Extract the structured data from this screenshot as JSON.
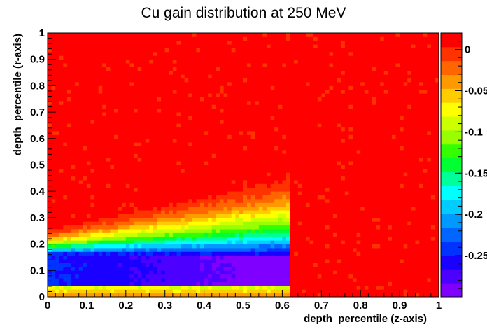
{
  "chart_data": {
    "type": "heatmap",
    "title": "Cu gain distribution at 250 MeV",
    "xlabel": "depth_percentile (z-axis)",
    "ylabel": "depth_percentile (r-axis)",
    "xlim": [
      0,
      1
    ],
    "ylim": [
      0,
      1
    ],
    "zlim": [
      -0.3,
      0.02
    ],
    "x_ticks": [
      "0",
      "0.1",
      "0.2",
      "0.3",
      "0.4",
      "0.5",
      "0.6",
      "0.7",
      "0.8",
      "0.9",
      "1"
    ],
    "y_ticks": [
      "0",
      "0.1",
      "0.2",
      "0.3",
      "0.4",
      "0.5",
      "0.6",
      "0.7",
      "0.8",
      "0.9",
      "1"
    ],
    "colorbar_ticks": [
      {
        "label": "0",
        "value": 0
      },
      {
        "label": "-0.05",
        "value": -0.05
      },
      {
        "label": "-0.1",
        "value": -0.1
      },
      {
        "label": "-0.15",
        "value": -0.15
      },
      {
        "label": "-0.2",
        "value": -0.2
      },
      {
        "label": "-0.25",
        "value": -0.25
      }
    ],
    "palette": [
      "#7f00ff",
      "#4c00ff",
      "#1a00ff",
      "#0033ff",
      "#0066ff",
      "#0099ff",
      "#00ccff",
      "#00ffff",
      "#00ff99",
      "#00ff33",
      "#33ff00",
      "#99ff00",
      "#ccff00",
      "#ffff00",
      "#ffcc00",
      "#ff9900",
      "#ff6600",
      "#ff3300",
      "#ff0000"
    ],
    "bins": {
      "x": 100,
      "y": 70
    },
    "profile": {
      "edge_z": 0.62,
      "core_r_start": 0.05,
      "core_r_end": 0.16,
      "min_gain": -0.29,
      "tail_top_r_at_z0": 0.25,
      "tail_top_r_at_edge": 0.45,
      "background_gain": 0.012
    }
  }
}
